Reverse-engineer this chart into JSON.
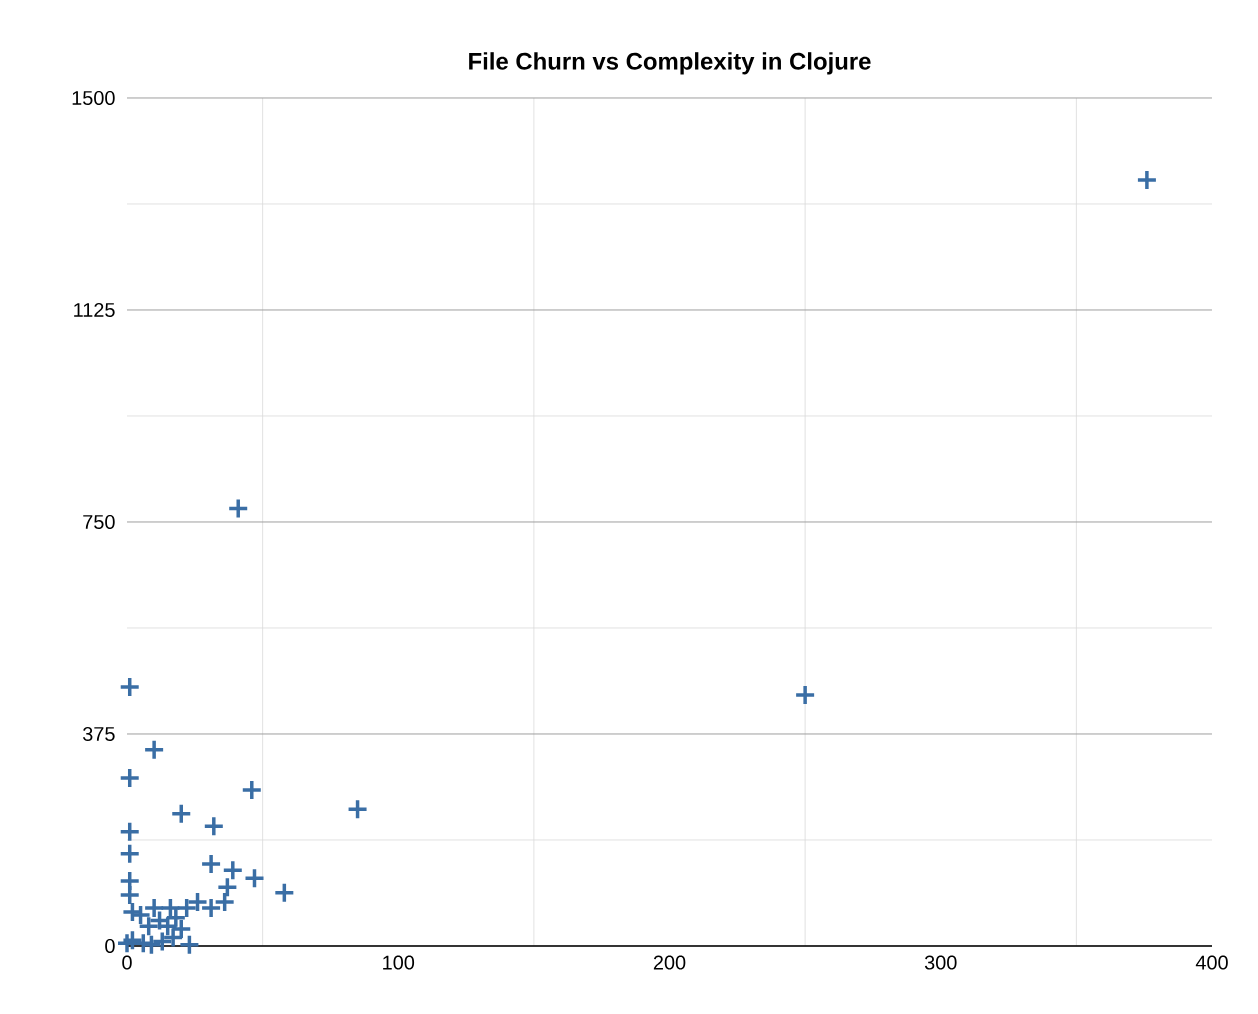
{
  "chart_data": {
    "type": "scatter",
    "title": "File Churn vs Complexity in Clojure",
    "x": [
      376,
      41,
      250,
      1,
      10,
      1,
      46,
      85,
      20,
      32,
      1,
      1,
      31,
      39,
      47,
      1,
      58,
      1,
      37,
      36,
      31,
      26,
      22,
      16,
      10,
      23,
      2,
      6,
      8,
      12,
      5,
      15,
      18,
      20,
      9,
      13,
      17,
      0,
      2
    ],
    "values": [
      1355,
      774,
      444,
      458,
      347,
      297,
      276,
      242,
      234,
      212,
      202,
      163,
      145,
      134,
      120,
      115,
      94,
      90,
      104,
      78,
      67,
      78,
      67,
      67,
      67,
      2,
      10,
      5,
      35,
      45,
      55,
      35,
      50,
      30,
      2,
      8,
      15,
      5,
      60
    ],
    "color": "#3a6ea5",
    "marker": "cross",
    "xlim": [
      0,
      400
    ],
    "xticks": [
      0,
      100,
      200,
      300,
      400
    ],
    "ylim": [
      0,
      1500
    ],
    "yticks": [
      0,
      375,
      750,
      1125,
      1500
    ],
    "grid": true
  }
}
